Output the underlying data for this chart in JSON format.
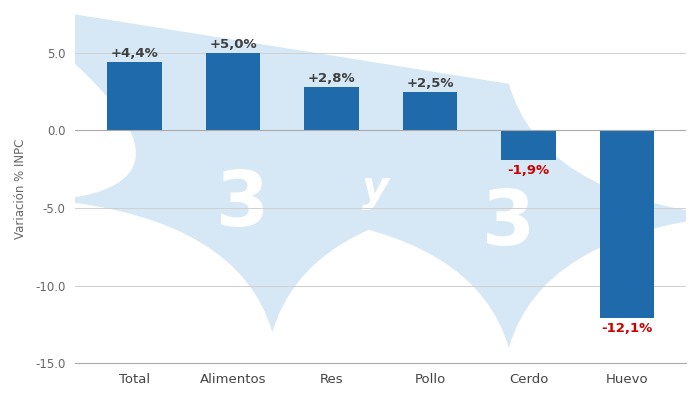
{
  "categories": [
    "Total",
    "Alimentos",
    "Res",
    "Pollo",
    "Cerdo",
    "Huevo"
  ],
  "values": [
    4.4,
    5.0,
    2.8,
    2.5,
    -1.9,
    -12.1
  ],
  "labels": [
    "+4,4%",
    "+5,0%",
    "+2,8%",
    "+2,5%",
    "-1,9%",
    "-12,1%"
  ],
  "bar_color": "#1f6aab",
  "positive_label_color": "#404040",
  "negative_label_color": "#cc0000",
  "ylabel": "Variación % INPC",
  "ylim": [
    -15.0,
    7.5
  ],
  "yticks": [
    -15.0,
    -10.0,
    -5.0,
    0.0,
    5.0
  ],
  "background_color": "#ffffff",
  "grid_color": "#d0d0d0",
  "watermark_color": "#d6e8f5",
  "bar_width": 0.55,
  "figsize": [
    7.0,
    4.0
  ],
  "dpi": 100
}
